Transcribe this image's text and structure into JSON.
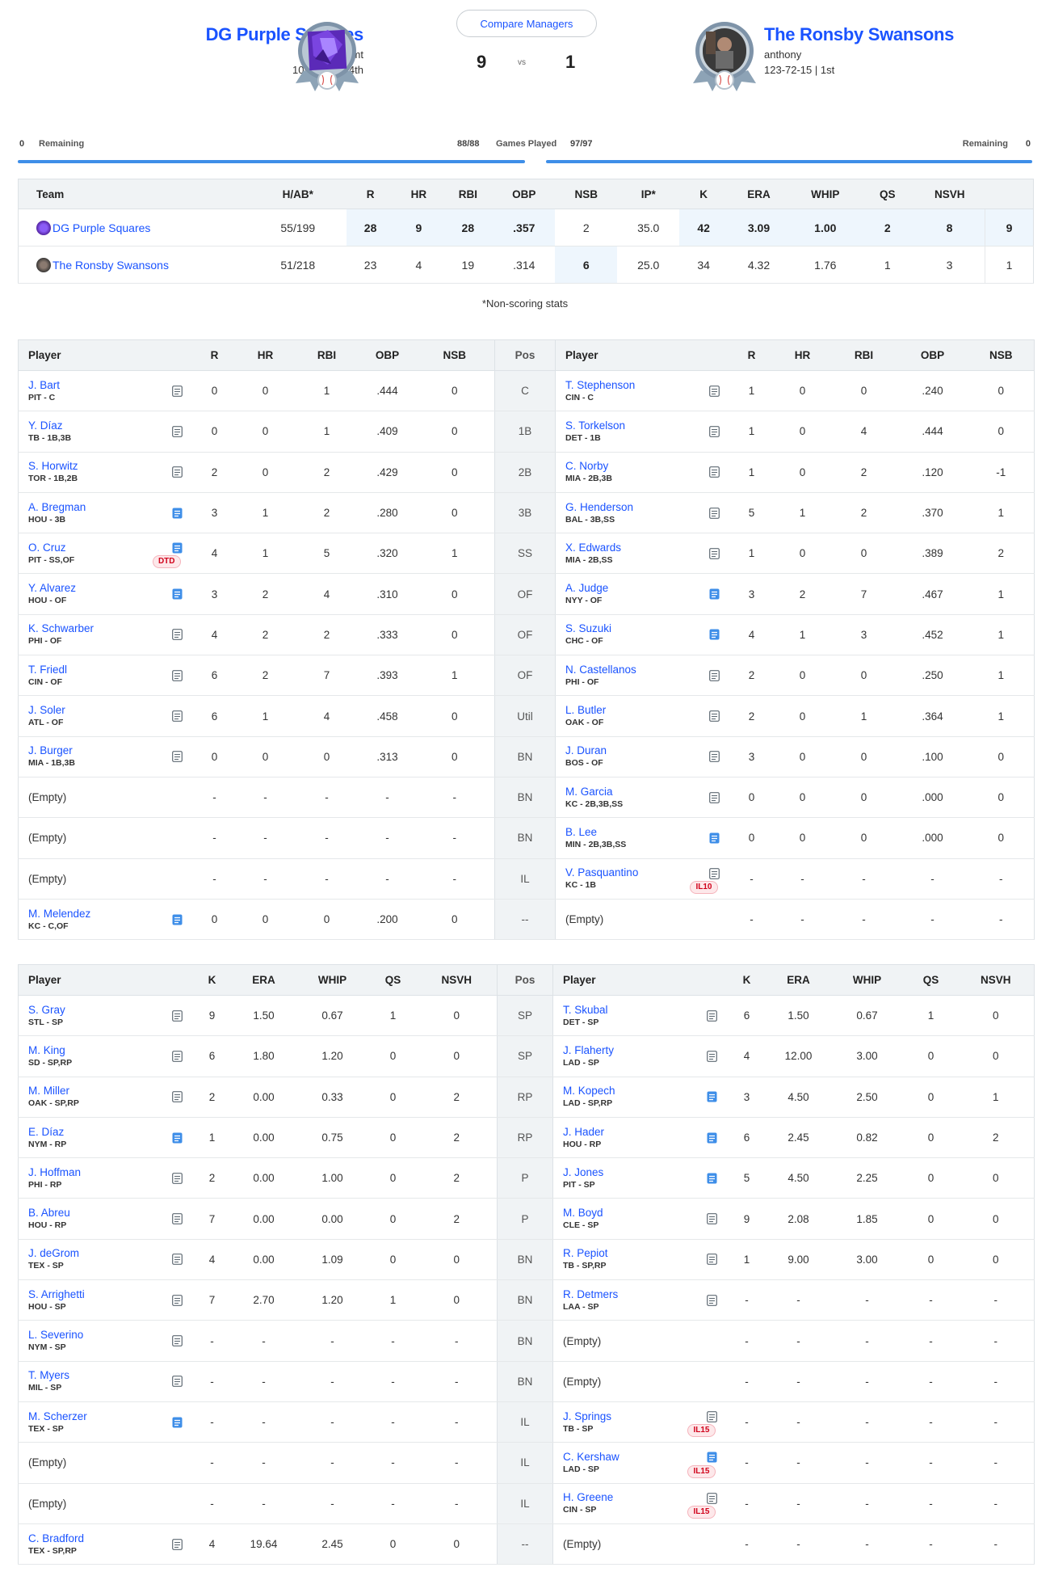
{
  "header": {
    "compare_label": "Compare Managers",
    "vs_label": "vs",
    "left": {
      "name": "DG Purple Squares",
      "manager": "williamt",
      "record": "109-85-16 | 4th",
      "score": "9"
    },
    "right": {
      "name": "The Ronsby Swansons",
      "manager": "anthony",
      "record": "123-72-15 | 1st",
      "score": "1"
    }
  },
  "progress": {
    "left_remaining_value": "0",
    "left_remaining_label": "Remaining",
    "left_games": "88/88",
    "games_label": "Games Played",
    "right_games": "97/97",
    "right_remaining_label": "Remaining",
    "right_remaining_value": "0"
  },
  "summary": {
    "headers": [
      "Team",
      "H/AB*",
      "R",
      "HR",
      "RBI",
      "OBP",
      "NSB",
      "IP*",
      "K",
      "ERA",
      "WHIP",
      "QS",
      "NSVH",
      ""
    ],
    "rows": [
      {
        "team": "DG Purple Squares",
        "cells": [
          "55/199",
          "28",
          "9",
          "28",
          ".357",
          "2",
          "35.0",
          "42",
          "3.09",
          "1.00",
          "2",
          "8",
          "9"
        ],
        "wins": [
          1,
          2,
          3,
          4,
          7,
          8,
          9,
          10,
          11,
          12
        ]
      },
      {
        "team": "The Ronsby Swansons",
        "cells": [
          "51/218",
          "23",
          "4",
          "19",
          ".314",
          "6",
          "25.0",
          "34",
          "4.32",
          "1.76",
          "1",
          "3",
          "1"
        ],
        "wins": [
          5
        ]
      }
    ],
    "note": "*Non-scoring stats"
  },
  "batters": {
    "headers": {
      "player": "Player",
      "stats": [
        "R",
        "HR",
        "RBI",
        "OBP",
        "NSB"
      ],
      "pos": "Pos"
    },
    "rows": [
      {
        "pos": "C",
        "l": {
          "name": "J. Bart",
          "team": "PIT - C",
          "icon": "gray",
          "stats": [
            "0",
            "0",
            "1",
            ".444",
            "0"
          ]
        },
        "r": {
          "name": "T. Stephenson",
          "team": "CIN - C",
          "icon": "gray",
          "stats": [
            "1",
            "0",
            "0",
            ".240",
            "0"
          ]
        }
      },
      {
        "pos": "1B",
        "l": {
          "name": "Y. Díaz",
          "team": "TB - 1B,3B",
          "icon": "gray",
          "stats": [
            "0",
            "0",
            "1",
            ".409",
            "0"
          ]
        },
        "r": {
          "name": "S. Torkelson",
          "team": "DET - 1B",
          "icon": "gray",
          "stats": [
            "1",
            "0",
            "4",
            ".444",
            "0"
          ]
        }
      },
      {
        "pos": "2B",
        "l": {
          "name": "S. Horwitz",
          "team": "TOR - 1B,2B",
          "icon": "gray",
          "stats": [
            "2",
            "0",
            "2",
            ".429",
            "0"
          ]
        },
        "r": {
          "name": "C. Norby",
          "team": "MIA - 2B,3B",
          "icon": "gray",
          "stats": [
            "1",
            "0",
            "2",
            ".120",
            "-1"
          ]
        }
      },
      {
        "pos": "3B",
        "l": {
          "name": "A. Bregman",
          "team": "HOU - 3B",
          "icon": "blue",
          "stats": [
            "3",
            "1",
            "2",
            ".280",
            "0"
          ]
        },
        "r": {
          "name": "G. Henderson",
          "team": "BAL - 3B,SS",
          "icon": "gray",
          "stats": [
            "5",
            "1",
            "2",
            ".370",
            "1"
          ]
        }
      },
      {
        "pos": "SS",
        "l": {
          "name": "O. Cruz",
          "team": "PIT - SS,OF",
          "icon": "blue",
          "badge": "DTD",
          "stats": [
            "4",
            "1",
            "5",
            ".320",
            "1"
          ]
        },
        "r": {
          "name": "X. Edwards",
          "team": "MIA - 2B,SS",
          "icon": "gray",
          "stats": [
            "1",
            "0",
            "0",
            ".389",
            "2"
          ]
        }
      },
      {
        "pos": "OF",
        "l": {
          "name": "Y. Alvarez",
          "team": "HOU - OF",
          "icon": "blue",
          "stats": [
            "3",
            "2",
            "4",
            ".310",
            "0"
          ]
        },
        "r": {
          "name": "A. Judge",
          "team": "NYY - OF",
          "icon": "blue",
          "stats": [
            "3",
            "2",
            "7",
            ".467",
            "1"
          ]
        }
      },
      {
        "pos": "OF",
        "l": {
          "name": "K. Schwarber",
          "team": "PHI - OF",
          "icon": "gray",
          "stats": [
            "4",
            "2",
            "2",
            ".333",
            "0"
          ]
        },
        "r": {
          "name": "S. Suzuki",
          "team": "CHC - OF",
          "icon": "blue",
          "stats": [
            "4",
            "1",
            "3",
            ".452",
            "1"
          ]
        }
      },
      {
        "pos": "OF",
        "l": {
          "name": "T. Friedl",
          "team": "CIN - OF",
          "icon": "gray",
          "stats": [
            "6",
            "2",
            "7",
            ".393",
            "1"
          ]
        },
        "r": {
          "name": "N. Castellanos",
          "team": "PHI - OF",
          "icon": "gray",
          "stats": [
            "2",
            "0",
            "0",
            ".250",
            "1"
          ]
        }
      },
      {
        "pos": "Util",
        "l": {
          "name": "J. Soler",
          "team": "ATL - OF",
          "icon": "gray",
          "stats": [
            "6",
            "1",
            "4",
            ".458",
            "0"
          ]
        },
        "r": {
          "name": "L. Butler",
          "team": "OAK - OF",
          "icon": "gray",
          "stats": [
            "2",
            "0",
            "1",
            ".364",
            "1"
          ]
        }
      },
      {
        "pos": "BN",
        "l": {
          "name": "J. Burger",
          "team": "MIA - 1B,3B",
          "icon": "gray",
          "stats": [
            "0",
            "0",
            "0",
            ".313",
            "0"
          ]
        },
        "r": {
          "name": "J. Duran",
          "team": "BOS - OF",
          "icon": "gray",
          "stats": [
            "3",
            "0",
            "0",
            ".100",
            "0"
          ]
        }
      },
      {
        "pos": "BN",
        "l": {
          "name": "(Empty)",
          "stats": [
            "-",
            "-",
            "-",
            "-",
            "-"
          ]
        },
        "r": {
          "name": "M. Garcia",
          "team": "KC - 2B,3B,SS",
          "icon": "gray",
          "stats": [
            "0",
            "0",
            "0",
            ".000",
            "0"
          ]
        }
      },
      {
        "pos": "BN",
        "l": {
          "name": "(Empty)",
          "stats": [
            "-",
            "-",
            "-",
            "-",
            "-"
          ]
        },
        "r": {
          "name": "B. Lee",
          "team": "MIN - 2B,3B,SS",
          "icon": "blue",
          "stats": [
            "0",
            "0",
            "0",
            ".000",
            "0"
          ]
        }
      },
      {
        "pos": "IL",
        "l": {
          "name": "(Empty)",
          "stats": [
            "-",
            "-",
            "-",
            "-",
            "-"
          ]
        },
        "r": {
          "name": "V. Pasquantino",
          "team": "KC - 1B",
          "icon": "gray",
          "badge": "IL10",
          "stats": [
            "-",
            "-",
            "-",
            "-",
            "-"
          ]
        }
      },
      {
        "pos": "--",
        "l": {
          "name": "M. Melendez",
          "team": "KC - C,OF",
          "icon": "blue",
          "stats": [
            "0",
            "0",
            "0",
            ".200",
            "0"
          ]
        },
        "r": {
          "name": "(Empty)",
          "stats": [
            "-",
            "-",
            "-",
            "-",
            "-"
          ]
        }
      }
    ]
  },
  "pitchers": {
    "headers": {
      "player": "Player",
      "stats": [
        "K",
        "ERA",
        "WHIP",
        "QS",
        "NSVH"
      ],
      "pos": "Pos"
    },
    "rows": [
      {
        "pos": "SP",
        "l": {
          "name": "S. Gray",
          "team": "STL - SP",
          "icon": "gray",
          "stats": [
            "9",
            "1.50",
            "0.67",
            "1",
            "0"
          ]
        },
        "r": {
          "name": "T. Skubal",
          "team": "DET - SP",
          "icon": "gray",
          "stats": [
            "6",
            "1.50",
            "0.67",
            "1",
            "0"
          ]
        }
      },
      {
        "pos": "SP",
        "l": {
          "name": "M. King",
          "team": "SD - SP,RP",
          "icon": "gray",
          "stats": [
            "6",
            "1.80",
            "1.20",
            "0",
            "0"
          ]
        },
        "r": {
          "name": "J. Flaherty",
          "team": "LAD - SP",
          "icon": "gray",
          "stats": [
            "4",
            "12.00",
            "3.00",
            "0",
            "0"
          ]
        }
      },
      {
        "pos": "RP",
        "l": {
          "name": "M. Miller",
          "team": "OAK - SP,RP",
          "icon": "gray",
          "stats": [
            "2",
            "0.00",
            "0.33",
            "0",
            "2"
          ]
        },
        "r": {
          "name": "M. Kopech",
          "team": "LAD - SP,RP",
          "icon": "blue",
          "stats": [
            "3",
            "4.50",
            "2.50",
            "0",
            "1"
          ]
        }
      },
      {
        "pos": "RP",
        "l": {
          "name": "E. Díaz",
          "team": "NYM - RP",
          "icon": "blue",
          "stats": [
            "1",
            "0.00",
            "0.75",
            "0",
            "2"
          ]
        },
        "r": {
          "name": "J. Hader",
          "team": "HOU - RP",
          "icon": "blue",
          "stats": [
            "6",
            "2.45",
            "0.82",
            "0",
            "2"
          ]
        }
      },
      {
        "pos": "P",
        "l": {
          "name": "J. Hoffman",
          "team": "PHI - RP",
          "icon": "gray",
          "stats": [
            "2",
            "0.00",
            "1.00",
            "0",
            "2"
          ]
        },
        "r": {
          "name": "J. Jones",
          "team": "PIT - SP",
          "icon": "blue",
          "stats": [
            "5",
            "4.50",
            "2.25",
            "0",
            "0"
          ]
        }
      },
      {
        "pos": "P",
        "l": {
          "name": "B. Abreu",
          "team": "HOU - RP",
          "icon": "gray",
          "stats": [
            "7",
            "0.00",
            "0.00",
            "0",
            "2"
          ]
        },
        "r": {
          "name": "M. Boyd",
          "team": "CLE - SP",
          "icon": "gray",
          "stats": [
            "9",
            "2.08",
            "1.85",
            "0",
            "0"
          ]
        }
      },
      {
        "pos": "BN",
        "l": {
          "name": "J. deGrom",
          "team": "TEX - SP",
          "icon": "gray",
          "stats": [
            "4",
            "0.00",
            "1.09",
            "0",
            "0"
          ]
        },
        "r": {
          "name": "R. Pepiot",
          "team": "TB - SP,RP",
          "icon": "gray",
          "stats": [
            "1",
            "9.00",
            "3.00",
            "0",
            "0"
          ]
        }
      },
      {
        "pos": "BN",
        "l": {
          "name": "S. Arrighetti",
          "team": "HOU - SP",
          "icon": "gray",
          "stats": [
            "7",
            "2.70",
            "1.20",
            "1",
            "0"
          ]
        },
        "r": {
          "name": "R. Detmers",
          "team": "LAA - SP",
          "icon": "gray",
          "stats": [
            "-",
            "-",
            "-",
            "-",
            "-"
          ]
        }
      },
      {
        "pos": "BN",
        "l": {
          "name": "L. Severino",
          "team": "NYM - SP",
          "icon": "gray",
          "stats": [
            "-",
            "-",
            "-",
            "-",
            "-"
          ]
        },
        "r": {
          "name": "(Empty)",
          "stats": [
            "-",
            "-",
            "-",
            "-",
            "-"
          ]
        }
      },
      {
        "pos": "BN",
        "l": {
          "name": "T. Myers",
          "team": "MIL - SP",
          "icon": "gray",
          "stats": [
            "-",
            "-",
            "-",
            "-",
            "-"
          ]
        },
        "r": {
          "name": "(Empty)",
          "stats": [
            "-",
            "-",
            "-",
            "-",
            "-"
          ]
        }
      },
      {
        "pos": "IL",
        "l": {
          "name": "M. Scherzer",
          "team": "TEX - SP",
          "icon": "blue",
          "stats": [
            "-",
            "-",
            "-",
            "-",
            "-"
          ]
        },
        "r": {
          "name": "J. Springs",
          "team": "TB - SP",
          "icon": "gray",
          "badge": "IL15",
          "stats": [
            "-",
            "-",
            "-",
            "-",
            "-"
          ]
        }
      },
      {
        "pos": "IL",
        "l": {
          "name": "(Empty)",
          "stats": [
            "-",
            "-",
            "-",
            "-",
            "-"
          ]
        },
        "r": {
          "name": "C. Kershaw",
          "team": "LAD - SP",
          "icon": "blue",
          "badge": "IL15",
          "stats": [
            "-",
            "-",
            "-",
            "-",
            "-"
          ]
        }
      },
      {
        "pos": "IL",
        "l": {
          "name": "(Empty)",
          "stats": [
            "-",
            "-",
            "-",
            "-",
            "-"
          ]
        },
        "r": {
          "name": "H. Greene",
          "team": "CIN - SP",
          "icon": "gray",
          "badge": "IL15",
          "stats": [
            "-",
            "-",
            "-",
            "-",
            "-"
          ]
        }
      },
      {
        "pos": "--",
        "l": {
          "name": "C. Bradford",
          "team": "TEX - SP,RP",
          "icon": "gray",
          "stats": [
            "4",
            "19.64",
            "2.45",
            "0",
            "0"
          ]
        },
        "r": {
          "name": "(Empty)",
          "stats": [
            "-",
            "-",
            "-",
            "-",
            "-"
          ]
        }
      }
    ]
  }
}
